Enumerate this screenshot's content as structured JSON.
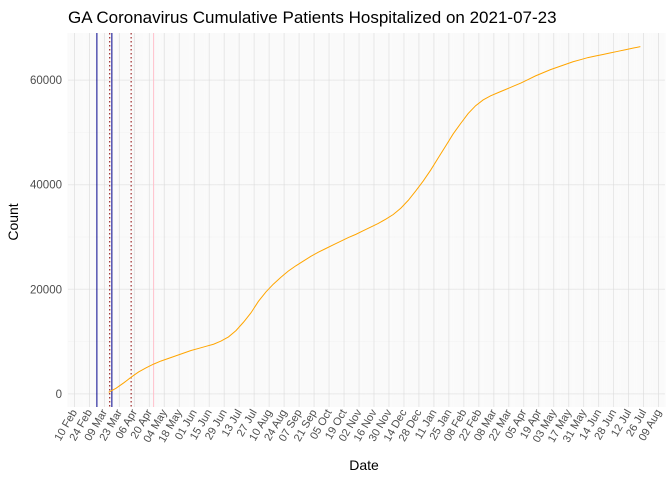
{
  "chart_data": {
    "type": "line",
    "title": "GA Coronavirus Cumulative Patients Hospitalized on 2021-07-23",
    "xlabel": "Date",
    "ylabel": "Count",
    "x_range": [
      "2020-02-04",
      "2021-08-15"
    ],
    "ylim": [
      -2500,
      69000
    ],
    "yticks": [
      0,
      20000,
      40000,
      60000
    ],
    "ytick_labels": [
      "0",
      "20000",
      "40000",
      "60000"
    ],
    "xtick_labels": [
      "10 Feb",
      "24 Feb",
      "09 Mar",
      "23 Mar",
      "06 Apr",
      "20 Apr",
      "04 May",
      "18 May",
      "01 Jun",
      "15 Jun",
      "29 Jun",
      "13 Jul",
      "27 Jul",
      "10 Aug",
      "24 Aug",
      "07 Sep",
      "21 Sep",
      "05 Oct",
      "19 Oct",
      "02 Nov",
      "16 Nov",
      "30 Nov",
      "14 Dec",
      "28 Dec",
      "11 Jan",
      "25 Jan",
      "08 Feb",
      "22 Feb",
      "08 Mar",
      "22 Mar",
      "05 Apr",
      "19 Apr",
      "03 May",
      "17 May",
      "31 May",
      "14 Jun",
      "28 Jun",
      "12 Jul",
      "26 Jul",
      "09 Aug"
    ],
    "grid": true,
    "vlines": [
      {
        "date": "2020-03-02",
        "color": "#00008b",
        "style": "solid"
      },
      {
        "date": "2020-03-14",
        "color": "#8b0000",
        "style": "dotted"
      },
      {
        "date": "2020-03-16",
        "color": "#00008b",
        "style": "solid"
      },
      {
        "date": "2020-04-03",
        "color": "#8b0000",
        "style": "dotted"
      },
      {
        "date": "2020-04-24",
        "color": "#ffc0cb",
        "style": "solid"
      }
    ],
    "series": [
      {
        "color": "#ffa500",
        "points": [
          [
            "2020-03-13",
            300
          ],
          [
            "2020-03-20",
            1100
          ],
          [
            "2020-03-27",
            2100
          ],
          [
            "2020-04-03",
            3200
          ],
          [
            "2020-04-10",
            4200
          ],
          [
            "2020-04-17",
            5000
          ],
          [
            "2020-04-24",
            5700
          ],
          [
            "2020-05-01",
            6300
          ],
          [
            "2020-05-08",
            6800
          ],
          [
            "2020-05-15",
            7300
          ],
          [
            "2020-05-22",
            7800
          ],
          [
            "2020-05-29",
            8300
          ],
          [
            "2020-06-05",
            8700
          ],
          [
            "2020-06-12",
            9100
          ],
          [
            "2020-06-19",
            9500
          ],
          [
            "2020-06-26",
            10100
          ],
          [
            "2020-07-03",
            10900
          ],
          [
            "2020-07-10",
            12100
          ],
          [
            "2020-07-17",
            13700
          ],
          [
            "2020-07-24",
            15500
          ],
          [
            "2020-07-31",
            17700
          ],
          [
            "2020-08-07",
            19500
          ],
          [
            "2020-08-14",
            21000
          ],
          [
            "2020-08-21",
            22300
          ],
          [
            "2020-08-28",
            23500
          ],
          [
            "2020-09-04",
            24500
          ],
          [
            "2020-09-11",
            25400
          ],
          [
            "2020-09-18",
            26300
          ],
          [
            "2020-09-25",
            27100
          ],
          [
            "2020-10-02",
            27800
          ],
          [
            "2020-10-09",
            28500
          ],
          [
            "2020-10-16",
            29200
          ],
          [
            "2020-10-23",
            29900
          ],
          [
            "2020-10-30",
            30500
          ],
          [
            "2020-11-06",
            31200
          ],
          [
            "2020-11-13",
            31900
          ],
          [
            "2020-11-20",
            32600
          ],
          [
            "2020-11-27",
            33400
          ],
          [
            "2020-12-04",
            34300
          ],
          [
            "2020-12-11",
            35500
          ],
          [
            "2020-12-18",
            37000
          ],
          [
            "2020-12-25",
            38800
          ],
          [
            "2021-01-01",
            40700
          ],
          [
            "2021-01-08",
            42800
          ],
          [
            "2021-01-15",
            45100
          ],
          [
            "2021-01-22",
            47400
          ],
          [
            "2021-01-29",
            49700
          ],
          [
            "2021-02-05",
            51700
          ],
          [
            "2021-02-12",
            53600
          ],
          [
            "2021-02-19",
            55100
          ],
          [
            "2021-02-26",
            56200
          ],
          [
            "2021-03-05",
            57000
          ],
          [
            "2021-03-12",
            57600
          ],
          [
            "2021-03-19",
            58200
          ],
          [
            "2021-03-26",
            58800
          ],
          [
            "2021-04-02",
            59400
          ],
          [
            "2021-04-09",
            60100
          ],
          [
            "2021-04-16",
            60800
          ],
          [
            "2021-04-23",
            61400
          ],
          [
            "2021-04-30",
            62000
          ],
          [
            "2021-05-07",
            62500
          ],
          [
            "2021-05-14",
            63000
          ],
          [
            "2021-05-21",
            63500
          ],
          [
            "2021-05-28",
            63900
          ],
          [
            "2021-06-04",
            64300
          ],
          [
            "2021-06-11",
            64600
          ],
          [
            "2021-06-18",
            64900
          ],
          [
            "2021-06-25",
            65200
          ],
          [
            "2021-07-02",
            65500
          ],
          [
            "2021-07-09",
            65800
          ],
          [
            "2021-07-16",
            66100
          ],
          [
            "2021-07-23",
            66400
          ]
        ]
      }
    ]
  }
}
